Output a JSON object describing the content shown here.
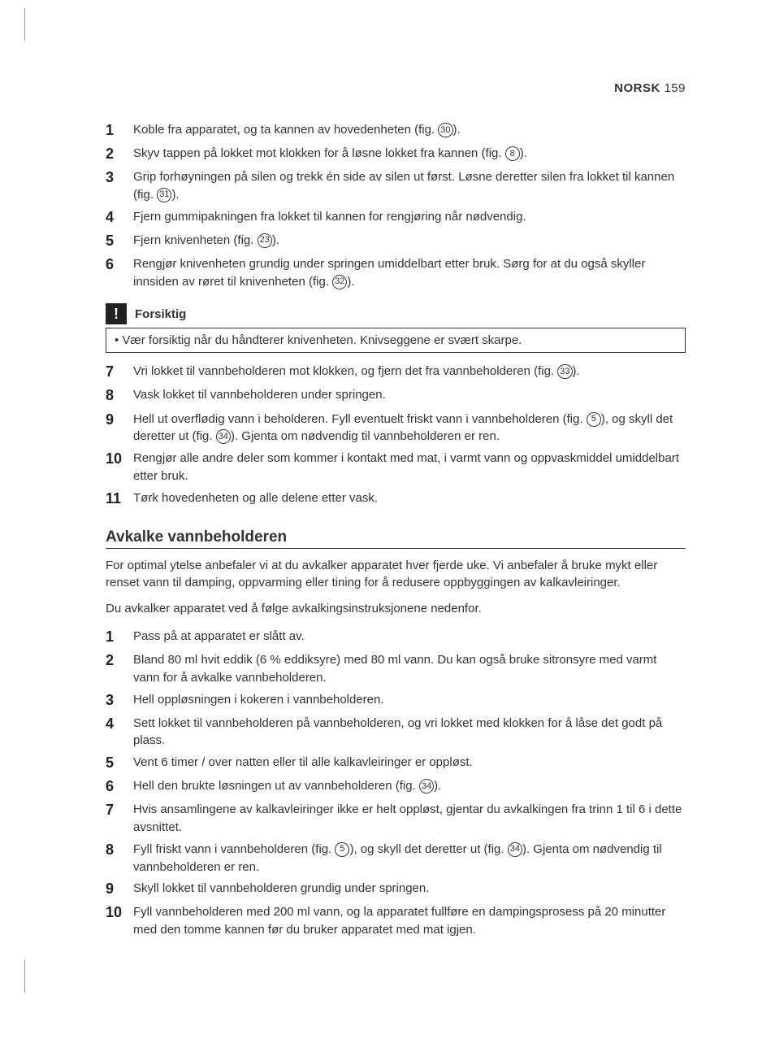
{
  "header": {
    "language": "NORSK",
    "page_number": "159"
  },
  "list1": [
    {
      "n": "1",
      "text_parts": [
        "Koble fra apparatet, og ta kannen av hovedenheten (fig. ",
        "30",
        ")."
      ]
    },
    {
      "n": "2",
      "text_parts": [
        "Skyv tappen på lokket mot klokken for å løsne lokket fra kannen (fig. ",
        "8",
        ")."
      ]
    },
    {
      "n": "3",
      "text_parts": [
        "Grip forhøyningen på silen og trekk én side av silen ut først. Løsne deretter silen fra lokket til kannen (fig. ",
        "31",
        ")."
      ]
    },
    {
      "n": "4",
      "text_parts": [
        "Fjern gummipakningen fra lokket til kannen for rengjøring når nødvendig."
      ]
    },
    {
      "n": "5",
      "text_parts": [
        "Fjern knivenheten (fig. ",
        "23",
        ")."
      ]
    },
    {
      "n": "6",
      "text_parts": [
        "Rengjør knivenheten grundig under springen umiddelbart etter bruk. Sørg for at du også skyller innsiden av røret til knivenheten (fig. ",
        "32",
        ")."
      ]
    }
  ],
  "caution": {
    "title": "Forsiktig",
    "item": "Vær forsiktig når du håndterer knivenheten. Knivseggene er svært skarpe."
  },
  "list2": [
    {
      "n": "7",
      "text_parts": [
        "Vri lokket til vannbeholderen mot klokken, og fjern det fra vannbeholderen (fig. ",
        "33",
        ")."
      ]
    },
    {
      "n": "8",
      "text_parts": [
        "Vask lokket til vannbeholderen under springen."
      ]
    },
    {
      "n": "9",
      "text_parts": [
        "Hell ut overflødig vann i beholderen. Fyll eventuelt friskt vann i vannbeholderen (fig. ",
        "5",
        "), og skyll det deretter ut (fig. ",
        "34",
        "). Gjenta om nødvendig til vannbeholderen er ren."
      ]
    },
    {
      "n": "10",
      "text_parts": [
        "Rengjør alle andre deler som kommer i kontakt med mat, i varmt vann og oppvaskmiddel umiddelbart etter bruk."
      ]
    },
    {
      "n": "11",
      "text_parts": [
        "Tørk hovedenheten og alle delene etter vask."
      ]
    }
  ],
  "section2": {
    "title": "Avkalke vannbeholderen",
    "intro1": "For optimal ytelse anbefaler vi at du avkalker apparatet hver fjerde uke. Vi anbefaler å bruke mykt eller renset vann til damping, oppvarming eller tining for å redusere oppbyggingen av kalkavleiringer.",
    "intro2": "Du avkalker apparatet ved å følge avkalkingsinstruksjonene nedenfor."
  },
  "list3": [
    {
      "n": "1",
      "text_parts": [
        "Pass på at apparatet er slått av."
      ]
    },
    {
      "n": "2",
      "text_parts": [
        "Bland 80 ml hvit eddik (6 % eddiksyre) med 80 ml vann. Du kan også bruke sitronsyre med varmt vann for å avkalke vannbeholderen."
      ]
    },
    {
      "n": "3",
      "text_parts": [
        "Hell oppløsningen i kokeren i vannbeholderen."
      ]
    },
    {
      "n": "4",
      "text_parts": [
        "Sett lokket til vannbeholderen på vannbeholderen, og vri lokket med klokken for å låse det godt på plass."
      ]
    },
    {
      "n": "5",
      "text_parts": [
        "Vent 6 timer / over natten eller til alle kalkavleiringer er oppløst."
      ]
    },
    {
      "n": "6",
      "text_parts": [
        "Hell den brukte løsningen ut av vannbeholderen (fig. ",
        "34",
        ")."
      ]
    },
    {
      "n": "7",
      "text_parts": [
        "Hvis ansamlingene av kalkavleiringer ikke er helt oppløst, gjentar du avkalkingen fra trinn 1 til 6 i dette avsnittet."
      ]
    },
    {
      "n": "8",
      "text_parts": [
        "Fyll friskt vann i vannbeholderen (fig. ",
        "5",
        "), og skyll det deretter ut (fig. ",
        "34",
        "). Gjenta om nødvendig til vannbeholderen er ren."
      ]
    },
    {
      "n": "9",
      "text_parts": [
        "Skyll lokket til vannbeholderen grundig under springen."
      ]
    },
    {
      "n": "10",
      "text_parts": [
        "Fyll vannbeholderen med 200 ml vann, og la apparatet fullføre en dampingsprosess på 20 minutter med den tomme kannen før du bruker apparatet med mat igjen."
      ]
    }
  ]
}
